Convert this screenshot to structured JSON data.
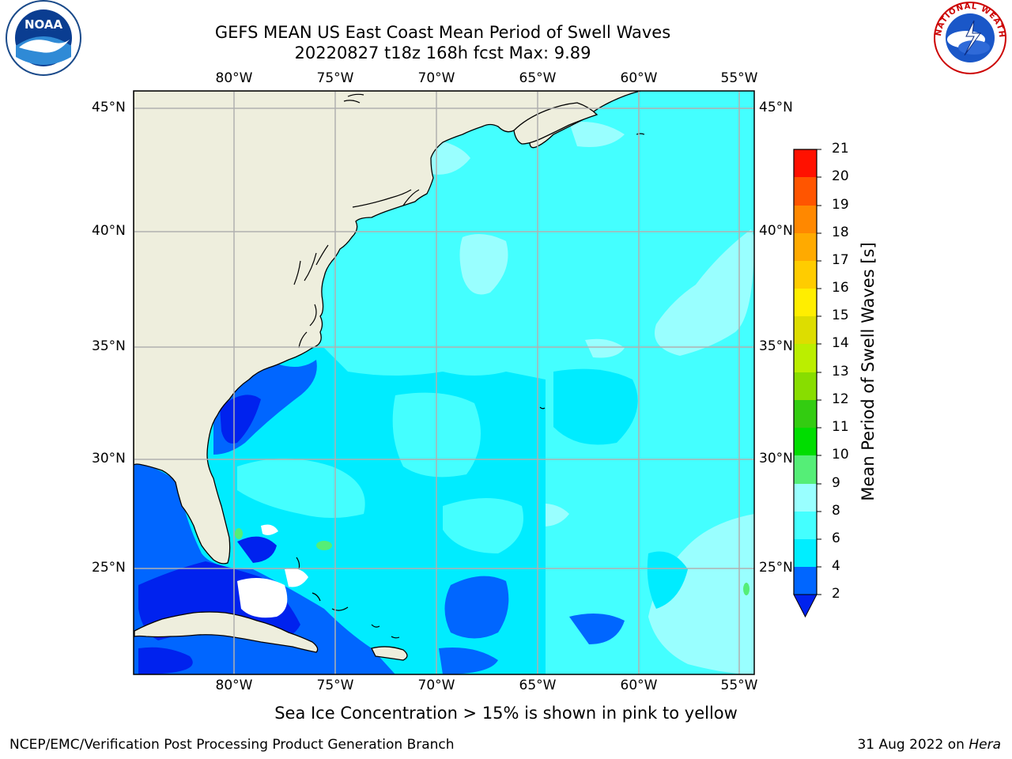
{
  "title_line1": "GEFS MEAN US East Coast Mean Period of Swell Waves",
  "title_line2": "20220827 t18z 168h fcst   Max: 9.89",
  "logos": {
    "left": "NOAA",
    "right": "NATIONAL WEATHER SERVICE"
  },
  "lon_labels": [
    "80°W",
    "75°W",
    "70°W",
    "65°W",
    "60°W",
    "55°W"
  ],
  "lat_labels": [
    "45°N",
    "40°N",
    "35°N",
    "30°N",
    "25°N"
  ],
  "colorbar": {
    "label": "Mean Period of Swell Waves [s]",
    "ticks": [
      "2",
      "4",
      "6",
      "8",
      "9",
      "10",
      "11",
      "12",
      "13",
      "14",
      "15",
      "16",
      "17",
      "18",
      "19",
      "20",
      "21"
    ],
    "colors": [
      "#0066ff",
      "#00ccff",
      "#33ffff",
      "#66ffff",
      "#99ffff",
      "#44ee77",
      "#22dd22",
      "#00cc00",
      "#66dd00",
      "#99dd00",
      "#ccdd00",
      "#eeee00",
      "#ffee00",
      "#ffcc00",
      "#ffaa00",
      "#ff8800",
      "#ff6600",
      "#ff4400",
      "#ff2200",
      "#ff0000"
    ],
    "under_color": "#0022ee"
  },
  "map_colors": {
    "land": "#eeeedd",
    "ocean_base": "#44ffff",
    "lighter": "#99ffff",
    "mid": "#00ecff",
    "blue": "#0066ff",
    "dark_blue": "#0022ee",
    "green": "#55ee77",
    "gridline": "#b0b0b0"
  },
  "subtitle": "Sea Ice Concentration > 15% is shown in pink to yellow",
  "footer_left": "NCEP/EMC/Verification Post Processing Product Generation Branch",
  "footer_date": "31 Aug 2022 on ",
  "footer_host": "Hera"
}
